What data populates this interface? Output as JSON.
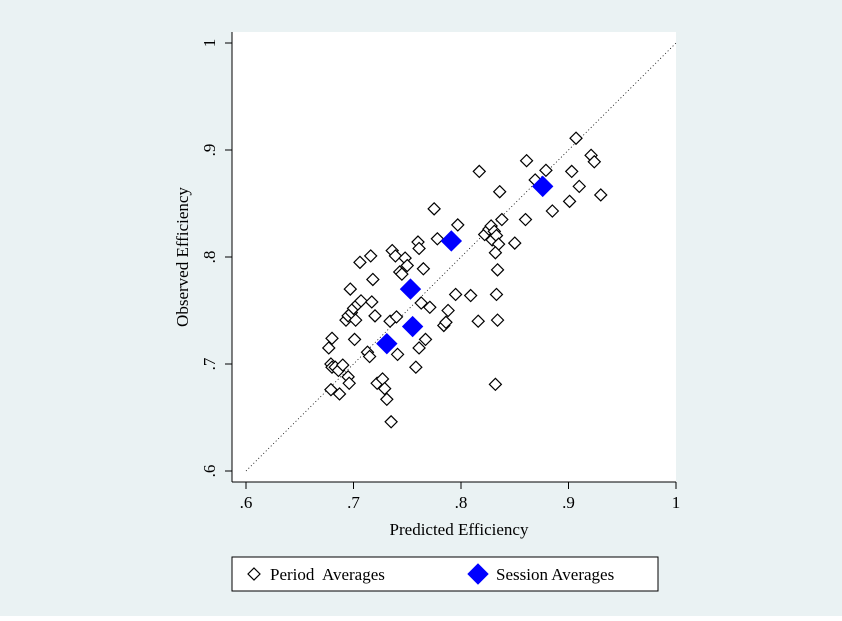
{
  "chart_data": {
    "type": "scatter",
    "xlabel": "Predicted Efficiency",
    "ylabel": "Observed Efficiency",
    "xlim": [
      0.6,
      1.0
    ],
    "ylim": [
      0.6,
      1.0
    ],
    "x_ticks": [
      0.6,
      0.7,
      0.8,
      0.9,
      1.0
    ],
    "x_tick_labels": [
      ".6",
      ".7",
      ".8",
      ".9",
      "1"
    ],
    "y_ticks": [
      0.6,
      0.7,
      0.8,
      0.9,
      1.0
    ],
    "y_tick_labels": [
      ".6",
      ".7",
      ".8",
      ".9",
      "1"
    ],
    "grid": false,
    "reference_line": {
      "from": [
        0.6,
        0.6
      ],
      "to": [
        1.0,
        1.0
      ],
      "style": "dotted"
    },
    "legend_position": "bottom",
    "colors": {
      "background": "#eaf2f3",
      "plot_bg": "#ffffff",
      "session": "#0000ff",
      "period": "#000000"
    },
    "series": [
      {
        "name": "Period  Averages",
        "marker": "hollow-diamond",
        "points": [
          [
            0.677,
            0.715
          ],
          [
            0.68,
            0.724
          ],
          [
            0.679,
            0.7
          ],
          [
            0.68,
            0.697
          ],
          [
            0.683,
            0.697
          ],
          [
            0.686,
            0.694
          ],
          [
            0.69,
            0.699
          ],
          [
            0.679,
            0.676
          ],
          [
            0.687,
            0.672
          ],
          [
            0.695,
            0.688
          ],
          [
            0.696,
            0.682
          ],
          [
            0.693,
            0.741
          ],
          [
            0.695,
            0.745
          ],
          [
            0.698,
            0.748
          ],
          [
            0.697,
            0.77
          ],
          [
            0.7,
            0.752
          ],
          [
            0.702,
            0.741
          ],
          [
            0.704,
            0.756
          ],
          [
            0.707,
            0.759
          ],
          [
            0.701,
            0.723
          ],
          [
            0.706,
            0.795
          ],
          [
            0.716,
            0.801
          ],
          [
            0.713,
            0.711
          ],
          [
            0.715,
            0.707
          ],
          [
            0.717,
            0.758
          ],
          [
            0.718,
            0.779
          ],
          [
            0.72,
            0.745
          ],
          [
            0.722,
            0.682
          ],
          [
            0.727,
            0.686
          ],
          [
            0.729,
            0.677
          ],
          [
            0.731,
            0.667
          ],
          [
            0.734,
            0.74
          ],
          [
            0.736,
            0.806
          ],
          [
            0.739,
            0.801
          ],
          [
            0.735,
            0.646
          ],
          [
            0.74,
            0.744
          ],
          [
            0.741,
            0.709
          ],
          [
            0.743,
            0.786
          ],
          [
            0.745,
            0.784
          ],
          [
            0.748,
            0.799
          ],
          [
            0.75,
            0.792
          ],
          [
            0.758,
            0.697
          ],
          [
            0.76,
            0.814
          ],
          [
            0.761,
            0.808
          ],
          [
            0.765,
            0.789
          ],
          [
            0.761,
            0.715
          ],
          [
            0.763,
            0.757
          ],
          [
            0.767,
            0.723
          ],
          [
            0.771,
            0.753
          ],
          [
            0.775,
            0.845
          ],
          [
            0.778,
            0.817
          ],
          [
            0.784,
            0.736
          ],
          [
            0.788,
            0.75
          ],
          [
            0.786,
            0.739
          ],
          [
            0.795,
            0.765
          ],
          [
            0.797,
            0.83
          ],
          [
            0.809,
            0.764
          ],
          [
            0.816,
            0.74
          ],
          [
            0.817,
            0.88
          ],
          [
            0.822,
            0.821
          ],
          [
            0.826,
            0.826
          ],
          [
            0.828,
            0.829
          ],
          [
            0.831,
            0.824
          ],
          [
            0.829,
            0.816
          ],
          [
            0.833,
            0.82
          ],
          [
            0.835,
            0.812
          ],
          [
            0.832,
            0.804
          ],
          [
            0.834,
            0.788
          ],
          [
            0.833,
            0.765
          ],
          [
            0.834,
            0.741
          ],
          [
            0.832,
            0.681
          ],
          [
            0.836,
            0.861
          ],
          [
            0.838,
            0.835
          ],
          [
            0.85,
            0.813
          ],
          [
            0.86,
            0.835
          ],
          [
            0.861,
            0.89
          ],
          [
            0.869,
            0.872
          ],
          [
            0.879,
            0.881
          ],
          [
            0.885,
            0.843
          ],
          [
            0.901,
            0.852
          ],
          [
            0.903,
            0.88
          ],
          [
            0.91,
            0.866
          ],
          [
            0.907,
            0.911
          ],
          [
            0.921,
            0.895
          ],
          [
            0.924,
            0.889
          ],
          [
            0.93,
            0.858
          ]
        ]
      },
      {
        "name": "Session Averages",
        "marker": "filled-diamond",
        "color": "#0000ff",
        "points": [
          [
            0.731,
            0.719
          ],
          [
            0.753,
            0.77
          ],
          [
            0.755,
            0.735
          ],
          [
            0.791,
            0.815
          ],
          [
            0.876,
            0.866
          ]
        ]
      }
    ]
  }
}
